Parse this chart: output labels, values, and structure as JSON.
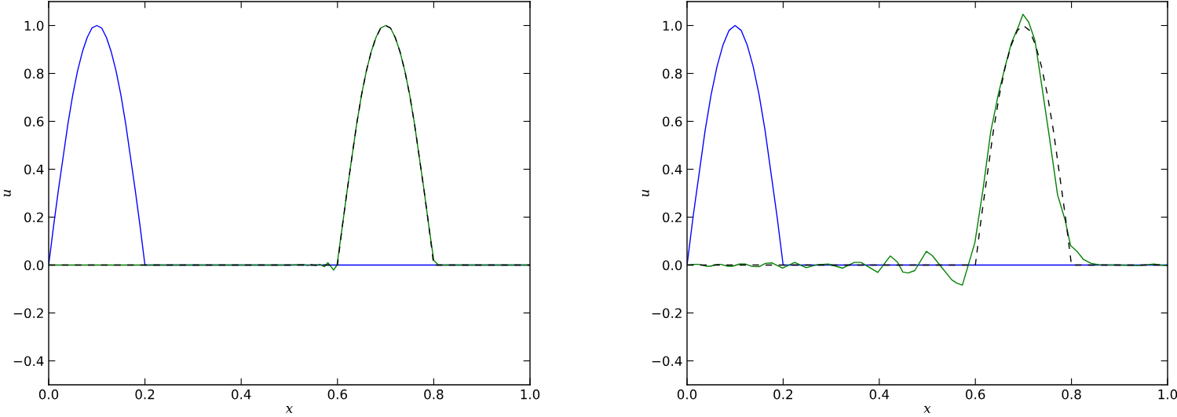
{
  "chart_data": [
    {
      "type": "line",
      "xlabel": "x",
      "ylabel": "u",
      "xlim": [
        0,
        1
      ],
      "ylim": [
        -0.5,
        1.1
      ],
      "xticks": [
        {
          "value": 0,
          "label": "0.0"
        },
        {
          "value": 0.2,
          "label": "0.2"
        },
        {
          "value": 0.4,
          "label": "0.4"
        },
        {
          "value": 0.6,
          "label": "0.6"
        },
        {
          "value": 0.8,
          "label": "0.8"
        },
        {
          "value": 1,
          "label": "1.0"
        }
      ],
      "yticks": [
        {
          "value": -0.4,
          "label": "−0.4"
        },
        {
          "value": -0.2,
          "label": "−0.2"
        },
        {
          "value": 0,
          "label": "0.0"
        },
        {
          "value": 0.2,
          "label": "0.2"
        },
        {
          "value": 0.4,
          "label": "0.4"
        },
        {
          "value": 0.6,
          "label": "0.6"
        },
        {
          "value": 0.8,
          "label": "0.8"
        },
        {
          "value": 1,
          "label": "1.0"
        }
      ],
      "grid": false,
      "series": [
        {
          "color": "#0000ff",
          "line_style": "solid",
          "x": [
            0,
            0.01,
            0.02,
            0.03,
            0.04,
            0.05,
            0.06,
            0.07,
            0.08,
            0.09,
            0.1,
            0.11,
            0.12,
            0.13,
            0.14,
            0.15,
            0.16,
            0.17,
            0.18,
            0.19,
            0.2,
            1.0
          ],
          "values": [
            0,
            0.16,
            0.31,
            0.45,
            0.59,
            0.71,
            0.81,
            0.89,
            0.95,
            0.99,
            1.0,
            0.99,
            0.95,
            0.89,
            0.81,
            0.71,
            0.59,
            0.45,
            0.31,
            0.16,
            0,
            0
          ]
        },
        {
          "color": "#008000",
          "line_style": "solid",
          "x": [
            0,
            0.5,
            0.53,
            0.538,
            0.546,
            0.554,
            0.563,
            0.573,
            0.58,
            0.592,
            0.599,
            0.61,
            0.62,
            0.63,
            0.64,
            0.65,
            0.66,
            0.67,
            0.68,
            0.69,
            0.7,
            0.71,
            0.72,
            0.73,
            0.74,
            0.75,
            0.76,
            0.77,
            0.78,
            0.79,
            0.8,
            0.81,
            1.0
          ],
          "values": [
            0,
            0,
            0.002,
            -0.002,
            0.002,
            -0.002,
            0.003,
            -0.007,
            0.01,
            -0.021,
            0.0,
            0.16,
            0.31,
            0.45,
            0.59,
            0.71,
            0.81,
            0.89,
            0.95,
            0.99,
            1.0,
            0.99,
            0.95,
            0.89,
            0.81,
            0.71,
            0.59,
            0.45,
            0.31,
            0.16,
            0.02,
            0.0,
            0
          ]
        },
        {
          "color": "#000000",
          "line_style": "dashed",
          "x": [
            0,
            0.6,
            0.61,
            0.62,
            0.63,
            0.64,
            0.65,
            0.66,
            0.67,
            0.68,
            0.69,
            0.7,
            0.71,
            0.72,
            0.73,
            0.74,
            0.75,
            0.76,
            0.77,
            0.78,
            0.79,
            0.8,
            1.0
          ],
          "values": [
            0,
            0,
            0.16,
            0.31,
            0.45,
            0.59,
            0.71,
            0.81,
            0.89,
            0.95,
            0.99,
            1.0,
            0.99,
            0.95,
            0.89,
            0.81,
            0.71,
            0.59,
            0.45,
            0.31,
            0.16,
            0,
            0
          ]
        }
      ]
    },
    {
      "type": "line",
      "xlabel": "x",
      "ylabel": "u",
      "xlim": [
        0,
        1
      ],
      "ylim": [
        -0.5,
        1.1
      ],
      "xticks": [
        {
          "value": 0,
          "label": "0.0"
        },
        {
          "value": 0.2,
          "label": "0.2"
        },
        {
          "value": 0.4,
          "label": "0.4"
        },
        {
          "value": 0.6,
          "label": "0.6"
        },
        {
          "value": 0.8,
          "label": "0.8"
        },
        {
          "value": 1,
          "label": "1.0"
        }
      ],
      "yticks": [
        {
          "value": -0.4,
          "label": "−0.4"
        },
        {
          "value": -0.2,
          "label": "−0.2"
        },
        {
          "value": 0,
          "label": "0.0"
        },
        {
          "value": 0.2,
          "label": "0.2"
        },
        {
          "value": 0.4,
          "label": "0.4"
        },
        {
          "value": 0.6,
          "label": "0.6"
        },
        {
          "value": 0.8,
          "label": "0.8"
        },
        {
          "value": 1,
          "label": "1.0"
        }
      ],
      "grid": false,
      "series": [
        {
          "color": "#0000ff",
          "line_style": "solid",
          "x": [
            0,
            0.0125,
            0.025,
            0.0375,
            0.05,
            0.0625,
            0.075,
            0.0875,
            0.1,
            0.1125,
            0.125,
            0.1375,
            0.15,
            0.1625,
            0.175,
            0.1875,
            0.2,
            1.0
          ],
          "values": [
            0,
            0.2,
            0.38,
            0.56,
            0.71,
            0.83,
            0.92,
            0.98,
            1.0,
            0.98,
            0.92,
            0.83,
            0.71,
            0.56,
            0.38,
            0.2,
            0,
            0
          ]
        },
        {
          "color": "#008000",
          "line_style": "solid",
          "x": [
            0,
            0.016,
            0.025,
            0.041,
            0.049,
            0.062,
            0.07,
            0.085,
            0.095,
            0.109,
            0.122,
            0.136,
            0.15,
            0.163,
            0.177,
            0.199,
            0.224,
            0.248,
            0.27,
            0.294,
            0.324,
            0.348,
            0.362,
            0.397,
            0.423,
            0.438,
            0.449,
            0.46,
            0.474,
            0.498,
            0.51,
            0.528,
            0.551,
            0.561,
            0.573,
            0.599,
            0.616,
            0.632,
            0.648,
            0.662,
            0.675,
            0.689,
            0.699,
            0.711,
            0.724,
            0.738,
            0.754,
            0.771,
            0.787,
            0.798,
            0.812,
            0.825,
            0.841,
            0.858,
            0.9,
            0.94,
            0.972,
            0.985,
            1.0
          ],
          "values": [
            0,
            0.003,
            0.003,
            -0.005,
            -0.005,
            0.003,
            0.003,
            -0.005,
            -0.005,
            0.004,
            0.004,
            -0.006,
            -0.007,
            0.007,
            0.009,
            -0.013,
            0.011,
            -0.011,
            0.001,
            0.004,
            -0.013,
            0.011,
            0.011,
            -0.031,
            0.038,
            0.012,
            -0.029,
            -0.033,
            -0.023,
            0.057,
            0.04,
            -0.005,
            -0.062,
            -0.075,
            -0.084,
            0.094,
            0.317,
            0.557,
            0.715,
            0.829,
            0.927,
            0.993,
            1.047,
            1.014,
            0.938,
            0.752,
            0.535,
            0.294,
            0.186,
            0.082,
            0.056,
            0.023,
            0.007,
            0.001,
            0.0,
            -0.002,
            0.004,
            0.0,
            -0.003
          ]
        },
        {
          "color": "#000000",
          "line_style": "dashed",
          "x": [
            0,
            0.6,
            0.6125,
            0.625,
            0.6375,
            0.65,
            0.6625,
            0.675,
            0.6875,
            0.7,
            0.7125,
            0.725,
            0.7375,
            0.75,
            0.7625,
            0.775,
            0.7875,
            0.8,
            1.0
          ],
          "values": [
            0,
            0,
            0.2,
            0.38,
            0.56,
            0.71,
            0.83,
            0.92,
            0.98,
            1.0,
            0.98,
            0.92,
            0.83,
            0.71,
            0.56,
            0.38,
            0.2,
            0,
            0
          ]
        }
      ]
    }
  ]
}
